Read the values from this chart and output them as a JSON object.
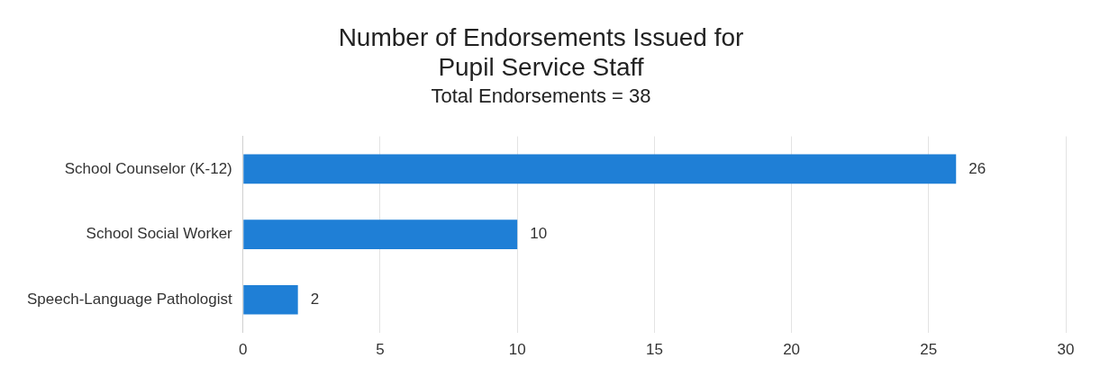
{
  "chart_data": {
    "type": "bar",
    "orientation": "horizontal",
    "title": "Number of Endorsements Issued for Pupil Service Staff",
    "subtitle": "Total Endorsements = 38",
    "categories": [
      "School Counselor (K-12)",
      "School Social Worker",
      "Speech-Language Pathologist"
    ],
    "values": [
      26,
      10,
      2
    ],
    "color": "#1f7fd6",
    "xlim": [
      0,
      30
    ],
    "xticks": [
      0,
      5,
      10,
      15,
      20,
      25,
      30
    ],
    "grid": "x",
    "data_labels": true,
    "legend": false
  }
}
